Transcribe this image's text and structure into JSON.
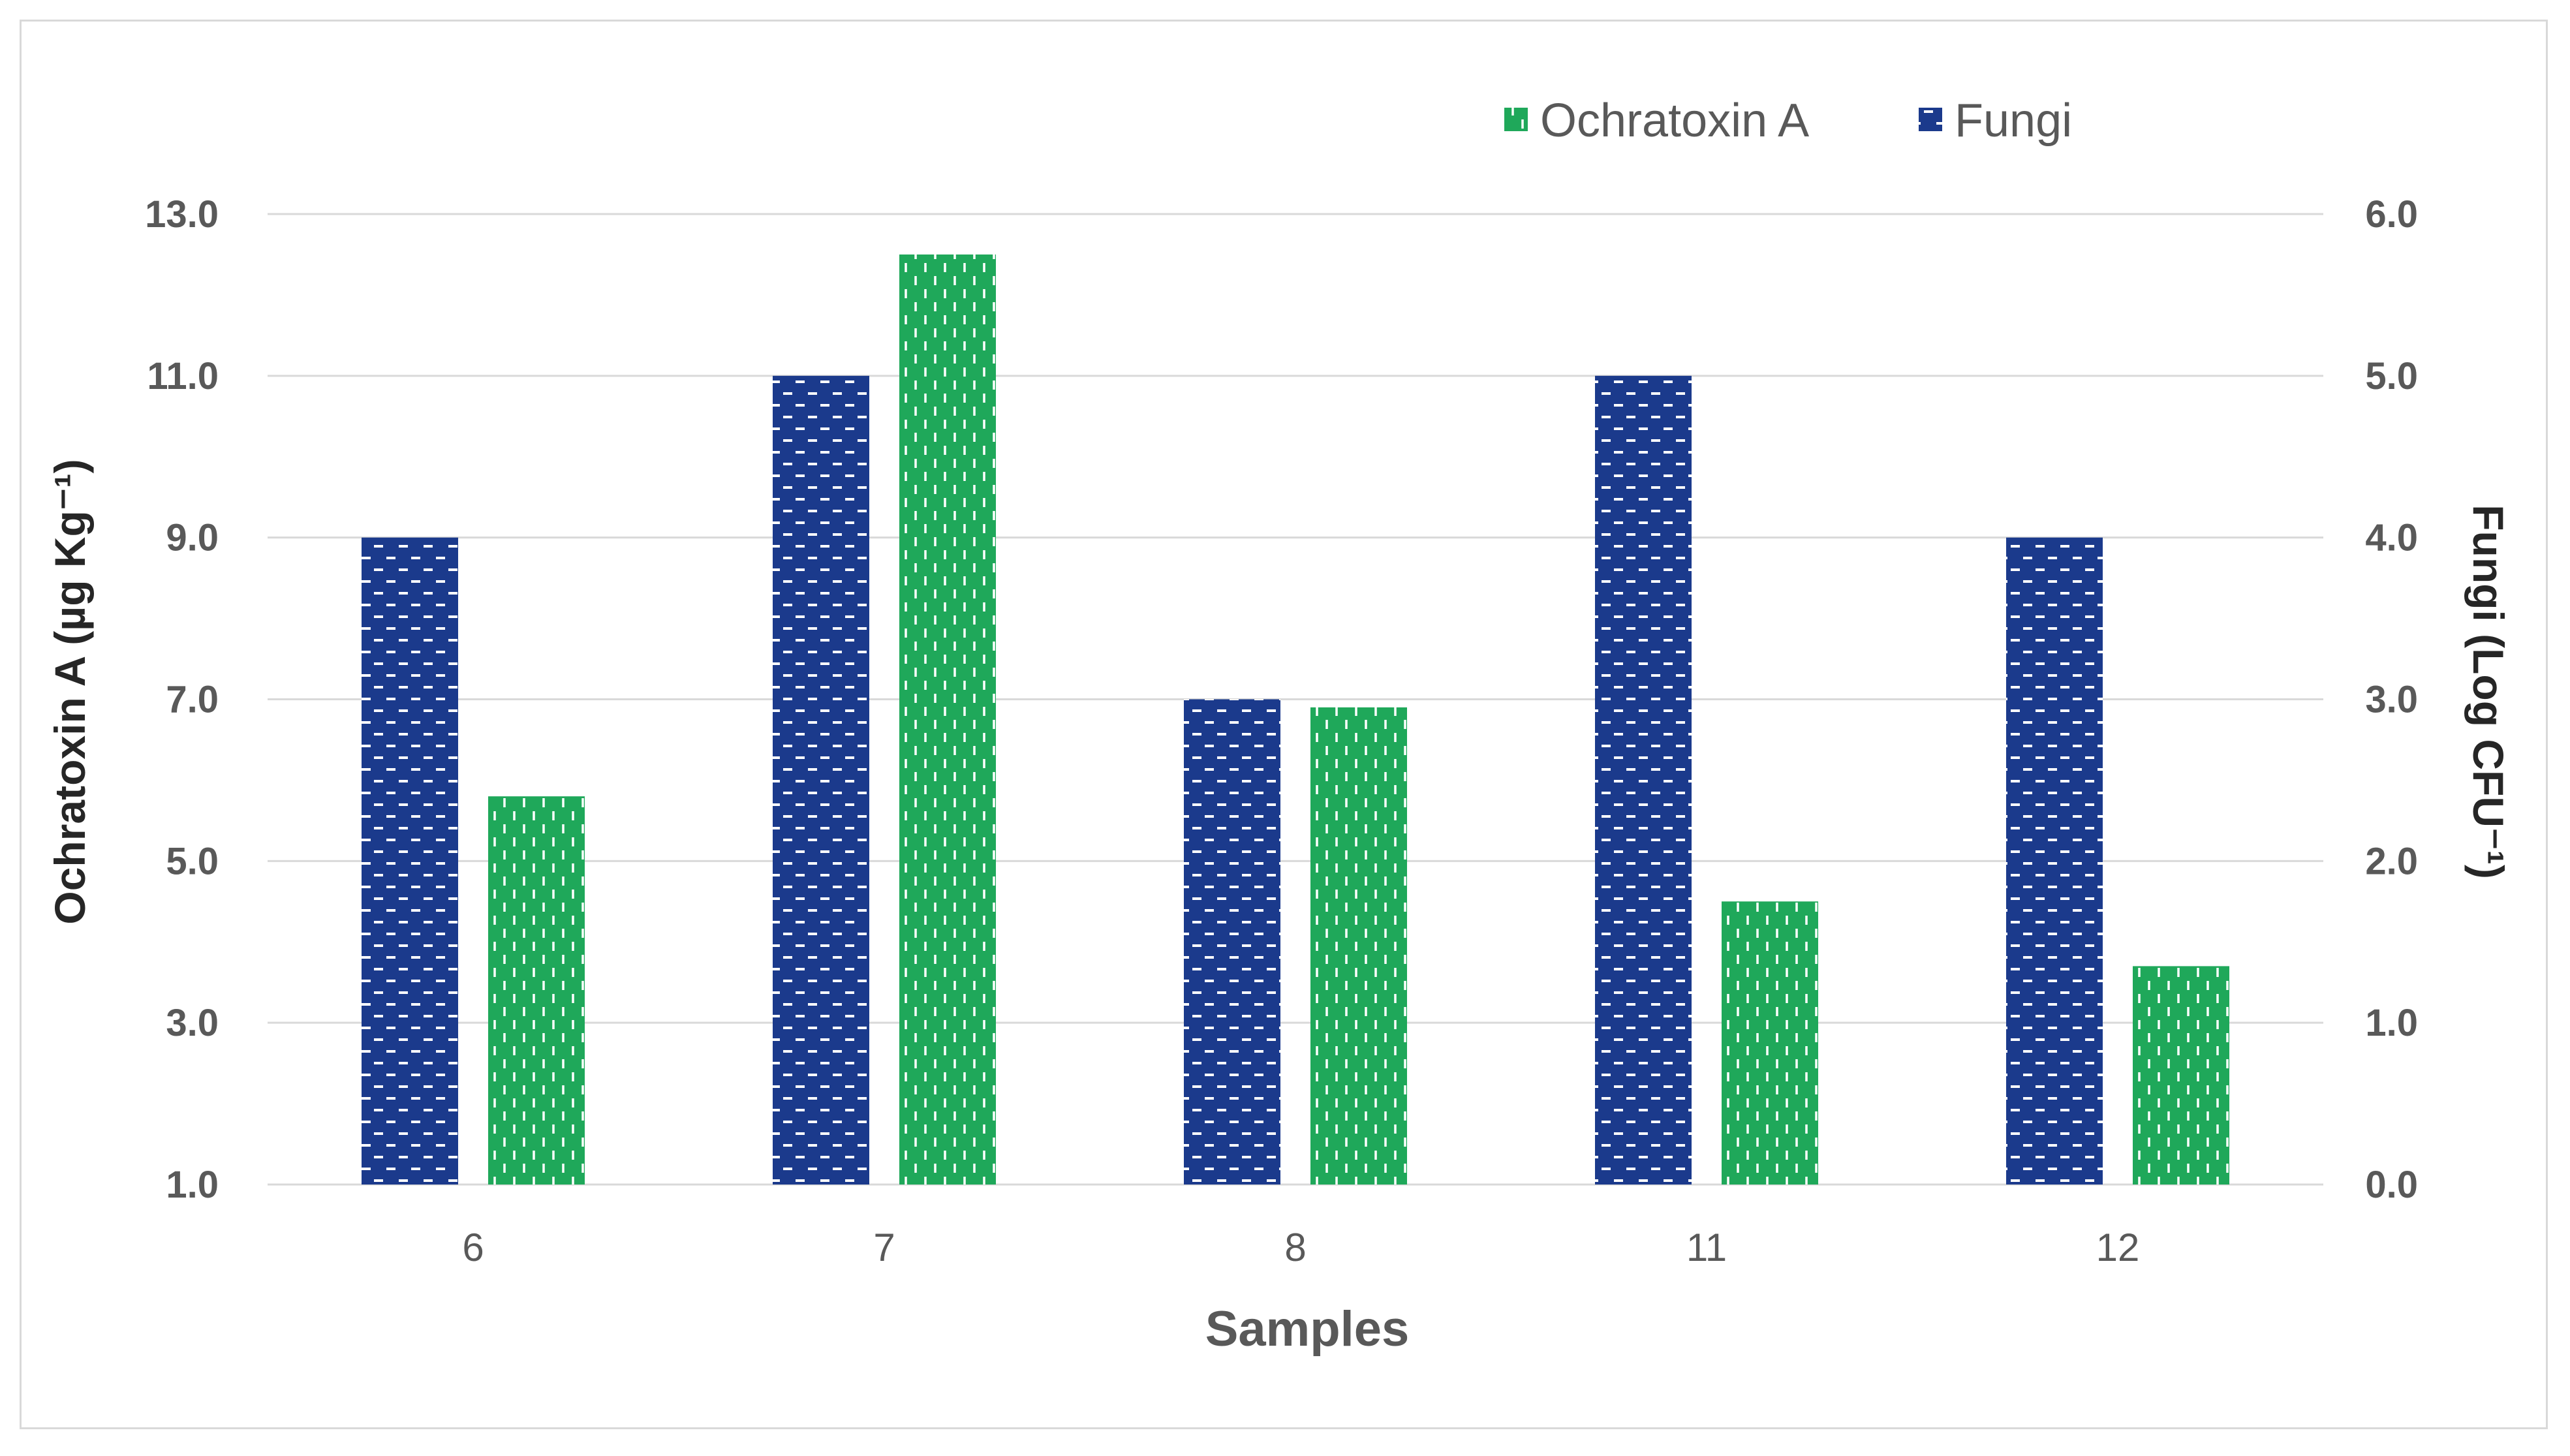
{
  "chart_data": {
    "type": "bar",
    "categories": [
      "6",
      "7",
      "8",
      "11",
      "12"
    ],
    "xlabel": "Samples",
    "series": [
      {
        "name": "Fungi",
        "axis": "right",
        "color": "#1b3a8c",
        "values": [
          4.0,
          5.0,
          3.0,
          5.0,
          4.0
        ]
      },
      {
        "name": "Ochratoxin A",
        "axis": "left",
        "color": "#1fa85a",
        "values": [
          5.8,
          12.5,
          6.9,
          4.5,
          3.7
        ]
      }
    ],
    "left_axis": {
      "label": "Ochratoxin A (µg Kg⁻¹)",
      "ylim": [
        1.0,
        13.0
      ],
      "ticks": [
        "1.0",
        "3.0",
        "5.0",
        "7.0",
        "9.0",
        "11.0",
        "13.0"
      ]
    },
    "right_axis": {
      "label": "Fungi (Log CFU⁻¹)",
      "ylim": [
        0.0,
        6.0
      ],
      "ticks": [
        "0.0",
        "1.0",
        "2.0",
        "3.0",
        "4.0",
        "5.0",
        "6.0"
      ]
    },
    "legend": {
      "placement": "top-right",
      "entries": [
        "Ochratoxin A",
        "Fungi"
      ]
    },
    "grid": true
  }
}
